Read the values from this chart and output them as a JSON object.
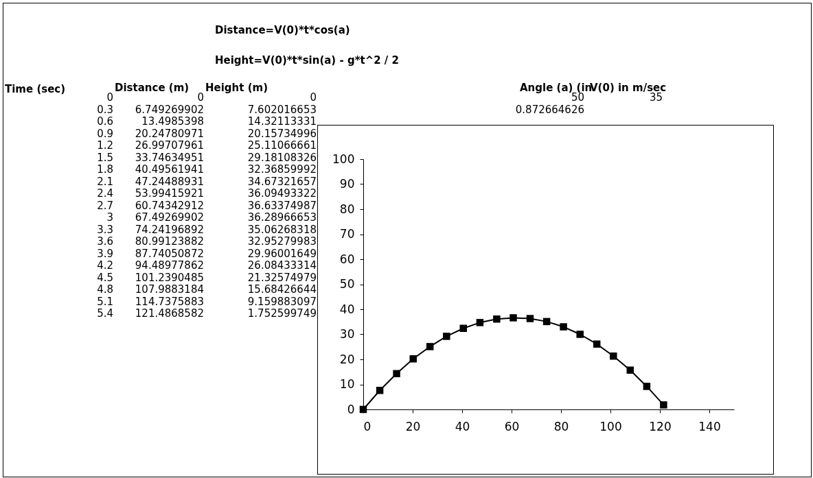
{
  "chart_data": {
    "type": "line",
    "marker": "square",
    "line_style": "solid",
    "grid": false,
    "x": [
      0,
      6.7,
      13.5,
      20.2,
      27,
      33.7,
      40.5,
      47.2,
      54,
      60.7,
      67.5,
      74.2,
      81,
      87.7,
      94.5,
      101.2,
      108,
      114.7,
      121.5
    ],
    "series": [
      {
        "color": "#000000",
        "values": [
          0,
          7.6,
          14.3,
          20.2,
          25.1,
          29.2,
          32.4,
          34.7,
          36.1,
          36.6,
          36.3,
          35.1,
          33,
          30,
          26.1,
          21.3,
          15.7,
          9.2,
          1.8
        ]
      }
    ],
    "xlim": [
      0,
      150
    ],
    "xticks": [
      0,
      20,
      40,
      60,
      80,
      100,
      120,
      140
    ],
    "ylim": [
      0,
      100
    ],
    "yticks": [
      0,
      10,
      20,
      30,
      40,
      50,
      60,
      70,
      80,
      90,
      100
    ],
    "annotations": [
      "Distance=V(0)*t*cos(a)",
      "Height=V(0)*t*sin(a) - g*t^2 / 2",
      "Time (sec)",
      "Distance (m)",
      "Height (m)",
      "Angle (a) (in",
      "V(0) in m/sec",
      "50",
      "35",
      "0.872664626",
      "0",
      "0.3",
      "0.6",
      "0.9",
      "1.2",
      "1.5",
      "1.8",
      "2.1",
      "2.4",
      "2.7",
      "3",
      "3.3",
      "3.6",
      "3.9",
      "4.2",
      "4.5",
      "4.8",
      "5.1",
      "5.4",
      "0",
      "6.749269902",
      "13.4985398",
      "20.24780971",
      "26.99707961",
      "33.74634951",
      "40.49561941",
      "47.24488931",
      "53.99415921",
      "60.74342912",
      "67.49269902",
      "74.24196892",
      "80.99123882",
      "87.74050872",
      "94.48977862",
      "101.2390485",
      "107.9883184",
      "114.7375883",
      "121.4868582",
      "0",
      "7.602016653",
      "14.32113331",
      "20.15734996",
      "25.11066661",
      "29.18108326",
      "32.36859992",
      "34.67321657",
      "36.09493322",
      "36.63374987",
      "36.28966653",
      "35.06268318",
      "32.95279983",
      "29.96001649",
      "26.08433314",
      "21.32574979",
      "15.68426644",
      "9.159883097",
      "1.752599749"
    ]
  }
}
